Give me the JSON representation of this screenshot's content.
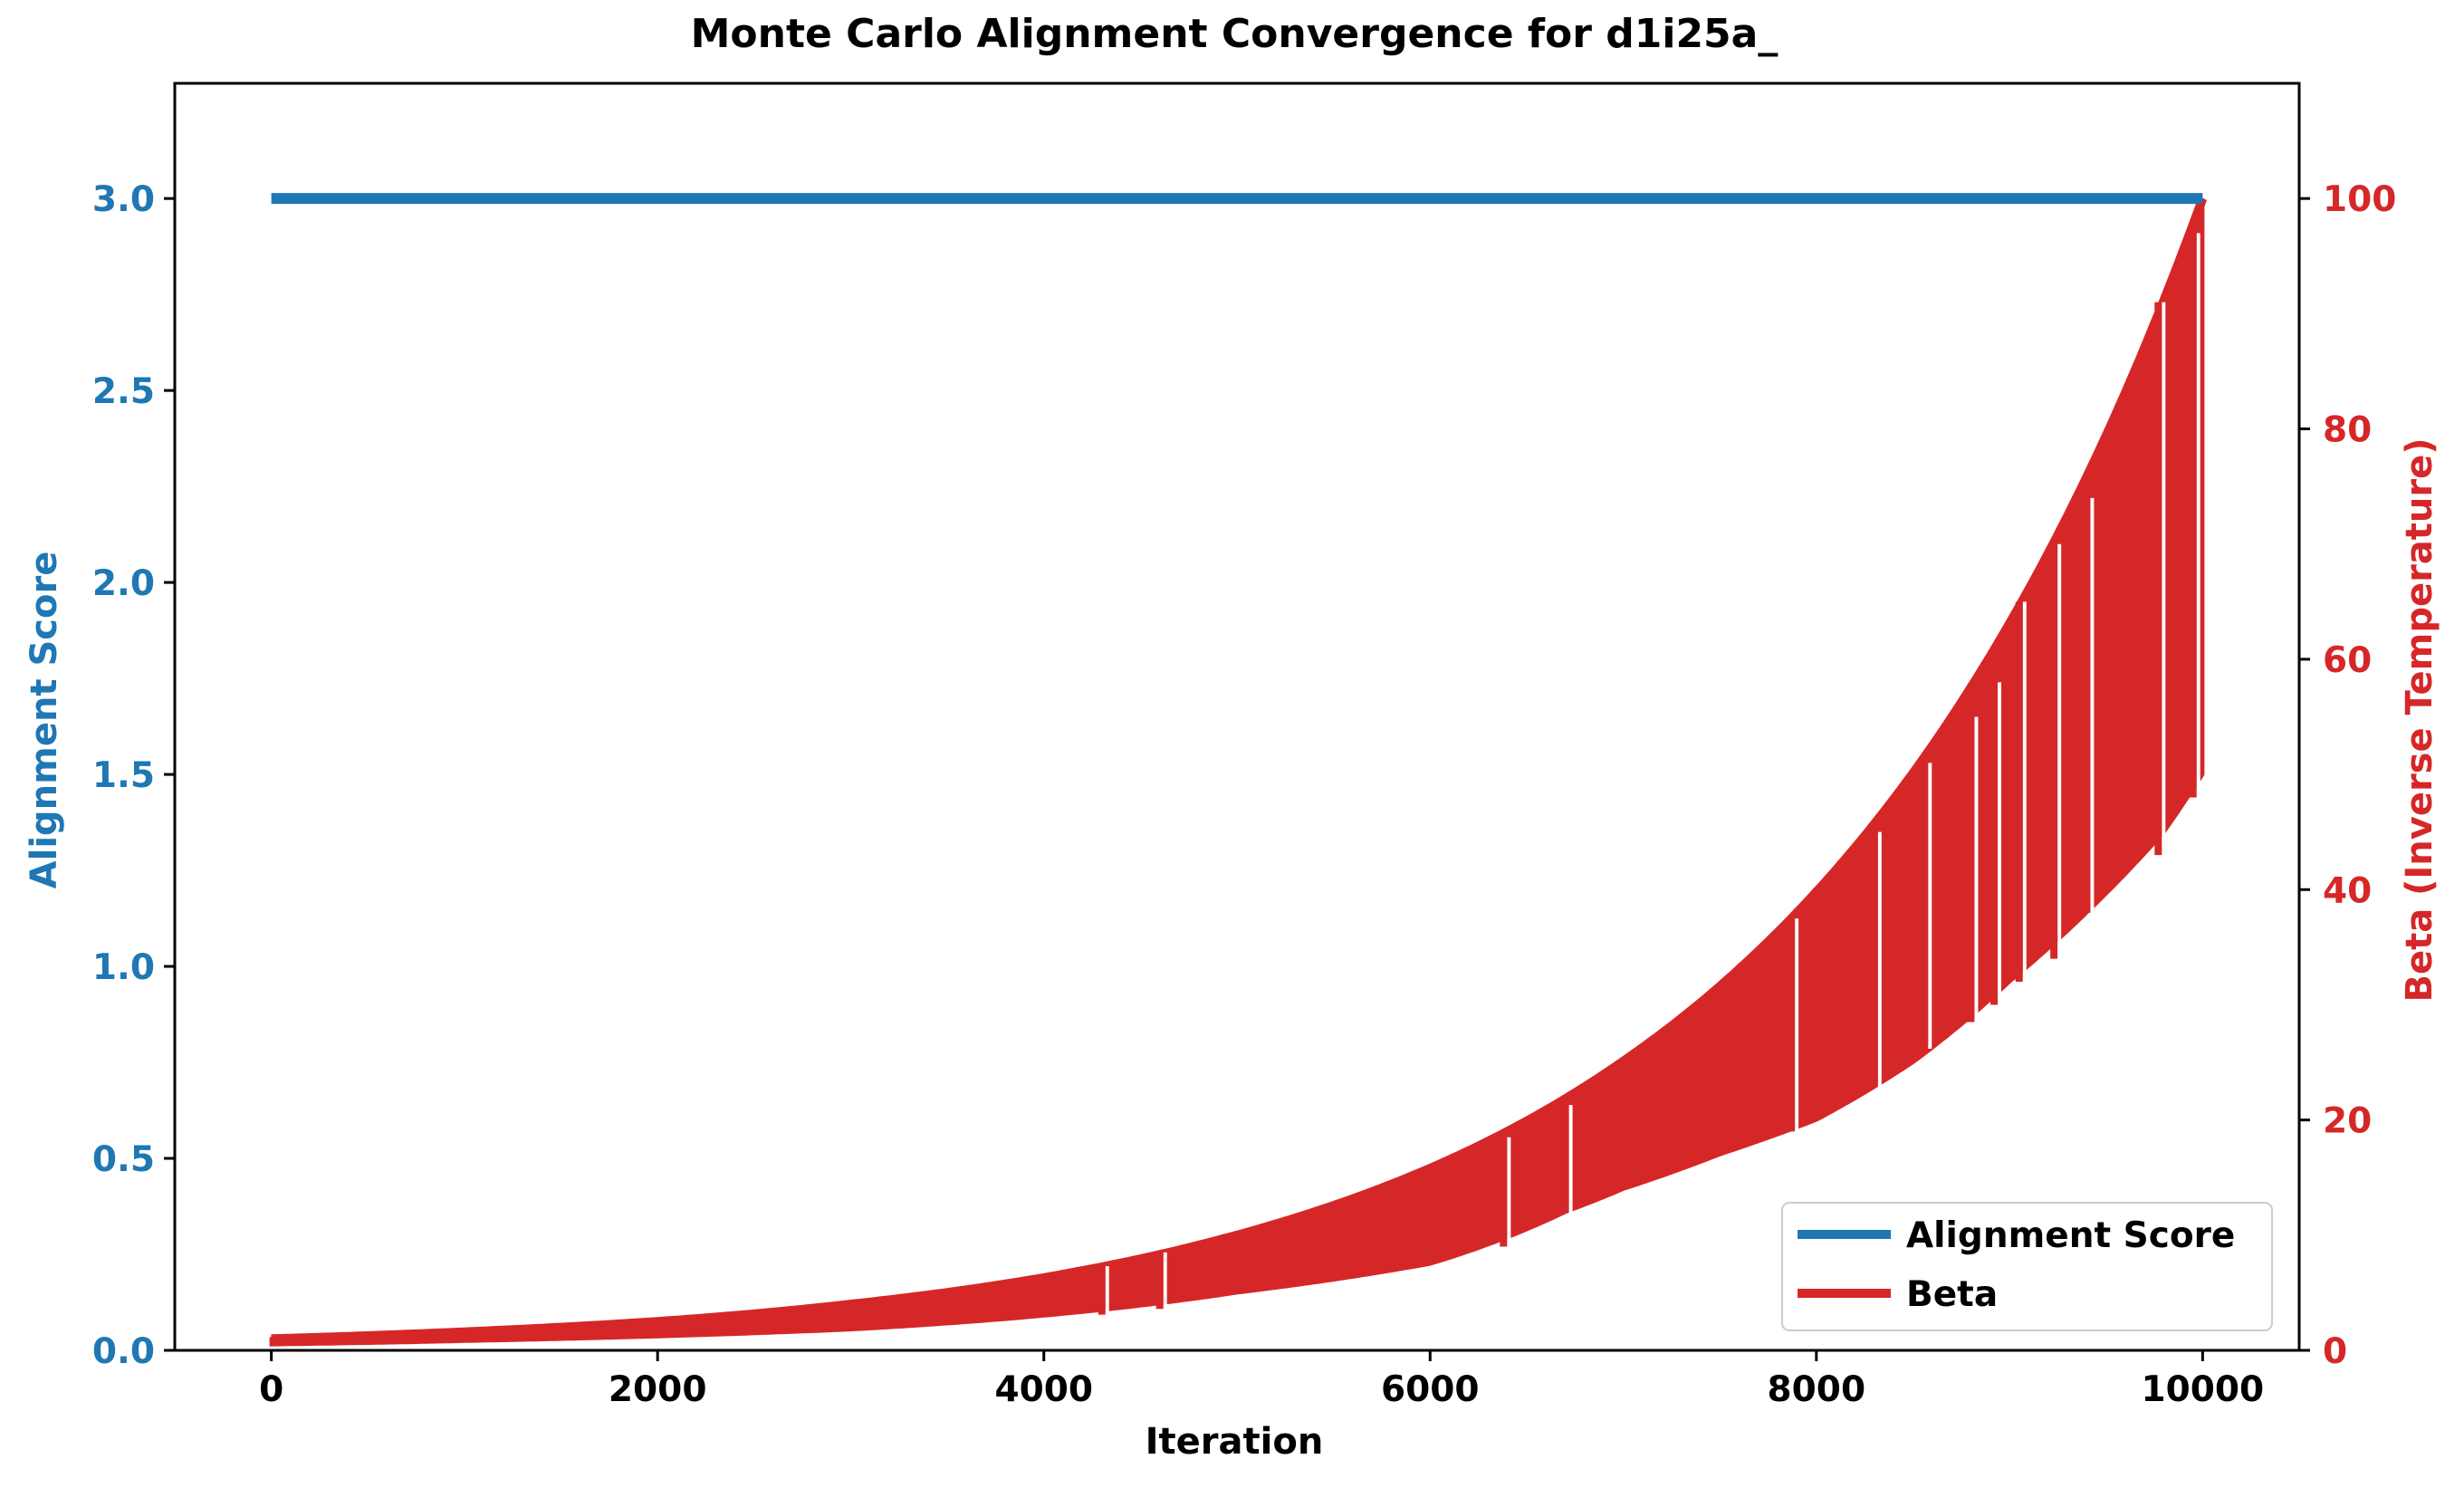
{
  "chart_data": {
    "type": "line",
    "title": "Monte Carlo Alignment Convergence for d1i25a_",
    "xlabel": "Iteration",
    "ylabel_left": "Alignment Score",
    "ylabel_right": "Beta (Inverse Temperature)",
    "xlim": [
      -500,
      10500
    ],
    "ylim_left": [
      0,
      3.3
    ],
    "ylim_right": [
      0,
      110
    ],
    "x_ticks": [
      0,
      2000,
      4000,
      6000,
      8000,
      10000
    ],
    "y_ticks_left": [
      "0.0",
      "0.5",
      "1.0",
      "1.5",
      "2.0",
      "2.5",
      "3.0"
    ],
    "y_ticks_right": [
      "0",
      "20",
      "40",
      "60",
      "80",
      "100"
    ],
    "legend_position": "lower-right",
    "colors": {
      "alignment": "#1f77b4",
      "beta": "#d62728",
      "axis": "#000000"
    },
    "series": [
      {
        "name": "Alignment Score",
        "axis": "left",
        "x": [
          0,
          10000
        ],
        "values": [
          3.0,
          3.0
        ],
        "note_min_dip": 2.98
      },
      {
        "name": "Beta",
        "axis": "right",
        "envelope_upper": {
          "x": [
            0,
            1000,
            2000,
            3000,
            4000,
            5000,
            6000,
            6500,
            7000,
            7500,
            8000,
            8500,
            9000,
            9500,
            10000
          ],
          "values": [
            1.0,
            1.6,
            2.5,
            4.0,
            6.3,
            10.0,
            15.8,
            19.9,
            25.1,
            31.6,
            39.8,
            50.1,
            63.1,
            79.4,
            100.0
          ]
        },
        "envelope_lower": {
          "x": [
            0,
            1000,
            2000,
            3000,
            4000,
            5000,
            6000,
            6700,
            7000,
            7500,
            8000,
            8500,
            9000,
            9400,
            9800,
            10000
          ],
          "values": [
            0.5,
            0.8,
            1.2,
            1.8,
            3.0,
            5.0,
            7.5,
            12.0,
            14.0,
            17.0,
            20.0,
            25.0,
            32.0,
            38.0,
            45.0,
            50.0
          ]
        },
        "spikes": [
          {
            "x": 4300,
            "low": 3.1,
            "high": 7.3
          },
          {
            "x": 4600,
            "low": 3.6,
            "high": 8.5
          },
          {
            "x": 6380,
            "low": 9.0,
            "high": 18.5
          },
          {
            "x": 6700,
            "low": 12.0,
            "high": 21.3
          },
          {
            "x": 7870,
            "low": 19.0,
            "high": 37.5
          },
          {
            "x": 8300,
            "low": 23.0,
            "high": 45.0
          },
          {
            "x": 8560,
            "low": 26.5,
            "high": 51.0
          },
          {
            "x": 8800,
            "low": 28.5,
            "high": 55.0
          },
          {
            "x": 8920,
            "low": 30.0,
            "high": 58.0
          },
          {
            "x": 9050,
            "low": 32.0,
            "high": 65.0
          },
          {
            "x": 9230,
            "low": 34.0,
            "high": 70.0
          },
          {
            "x": 9400,
            "low": 38.0,
            "high": 74.0
          },
          {
            "x": 9770,
            "low": 43.0,
            "high": 91.0
          },
          {
            "x": 9950,
            "low": 48.0,
            "high": 97.0
          }
        ]
      }
    ]
  }
}
